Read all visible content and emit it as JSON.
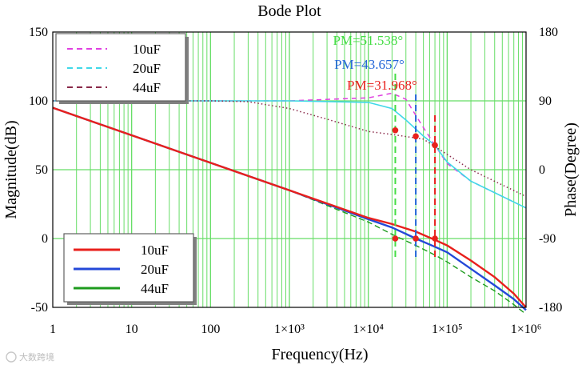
{
  "chart_data": {
    "type": "line",
    "title": "Bode Plot",
    "xlabel": "Frequency(Hz)",
    "ylabel_left": "Magnitude(dB)",
    "ylabel_right": "Phase(Degree)",
    "xscale": "log",
    "xlim": [
      1,
      1000000
    ],
    "ylim_left": [
      -50,
      150
    ],
    "ylim_right": [
      -180,
      180
    ],
    "x_ticks": [
      {
        "value": 1,
        "label": "1"
      },
      {
        "value": 10,
        "label": "10"
      },
      {
        "value": 100,
        "label": "100"
      },
      {
        "value": 1000,
        "label": "1×10³"
      },
      {
        "value": 10000,
        "label": "1×10⁴"
      },
      {
        "value": 100000,
        "label": "1×10⁵"
      },
      {
        "value": 1000000,
        "label": "1×10⁶"
      }
    ],
    "y_left_ticks": [
      "150",
      "100",
      "50",
      "0",
      "-50"
    ],
    "y_right_ticks": [
      "180",
      "90",
      "0",
      "-90",
      "-180"
    ],
    "grid": true,
    "colors": {
      "grid": "#66dd66",
      "mag_10uF": "#e8201c",
      "mag_20uF": "#2448d8",
      "mag_44uF": "#1e9b1e",
      "phase_10uF": "#e040e0",
      "phase_20uF": "#40d8e8",
      "phase_44uF": "#8a2a4a",
      "pm_10uF": "#e8201c",
      "pm_20uF": "#2466d8",
      "pm_44uF": "#44dd44"
    },
    "magnitude_series": [
      {
        "name": "10uF",
        "x": [
          1,
          10,
          100,
          1000,
          10000,
          20000,
          40000,
          70000,
          100000,
          200000,
          400000,
          700000,
          1000000
        ],
        "y": [
          95,
          75,
          55,
          35,
          15,
          10.5,
          5,
          -1,
          -5,
          -16,
          -28,
          -40,
          -50
        ]
      },
      {
        "name": "20uF",
        "x": [
          1,
          10,
          100,
          1000,
          10000,
          20000,
          40000,
          70000,
          100000,
          200000,
          400000,
          700000,
          1000000
        ],
        "y": [
          95,
          75,
          55,
          35,
          14,
          8,
          0,
          -6,
          -10,
          -22,
          -34,
          -44,
          -52
        ]
      },
      {
        "name": "44uF",
        "x": [
          1,
          10,
          100,
          1000,
          10000,
          20000,
          40000,
          70000,
          100000,
          200000,
          400000,
          700000,
          1000000
        ],
        "y": [
          95,
          75,
          55,
          35,
          12,
          3,
          -5,
          -12,
          -17,
          -28,
          -38,
          -48,
          -55
        ]
      }
    ],
    "phase_series": [
      {
        "name": "10uF",
        "style": "dashed",
        "x": [
          1,
          100,
          1000,
          10000,
          20000,
          30000,
          50000,
          70000,
          100000,
          200000,
          500000,
          1000000
        ],
        "y": [
          90,
          90,
          90,
          94,
          100,
          92,
          55,
          32,
          8,
          -15,
          -35,
          -50
        ]
      },
      {
        "name": "20uF",
        "style": "dashed",
        "x": [
          1,
          100,
          1000,
          10000,
          20000,
          30000,
          50000,
          70000,
          100000,
          200000,
          500000,
          1000000
        ],
        "y": [
          90,
          90,
          90,
          88,
          80,
          65,
          44,
          32,
          10,
          -15,
          -35,
          -50
        ]
      },
      {
        "name": "44uF",
        "style": "dotted",
        "x": [
          1,
          100,
          300,
          1000,
          3000,
          10000,
          20000,
          50000,
          100000,
          200000,
          500000,
          1000000
        ],
        "y": [
          90,
          90,
          89,
          80,
          66,
          50,
          46,
          40,
          20,
          0,
          -20,
          -35
        ]
      }
    ],
    "phase_margins": [
      {
        "label": "PM=51.538°",
        "series": "44uF",
        "fc": 22000,
        "phase": 51.538
      },
      {
        "label": "PM=43.657°",
        "series": "20uF",
        "fc": 40000,
        "phase": 43.657
      },
      {
        "label": "PM=31.968°",
        "series": "10uF",
        "fc": 70000,
        "phase": 31.968
      }
    ],
    "legend_phase": {
      "position": "top-left",
      "entries": [
        "10uF",
        "20uF",
        "44uF"
      ]
    },
    "legend_magnitude": {
      "position": "bottom-left",
      "entries": [
        "10uF",
        "20uF",
        "44uF"
      ]
    }
  },
  "watermark": "大数跨境"
}
